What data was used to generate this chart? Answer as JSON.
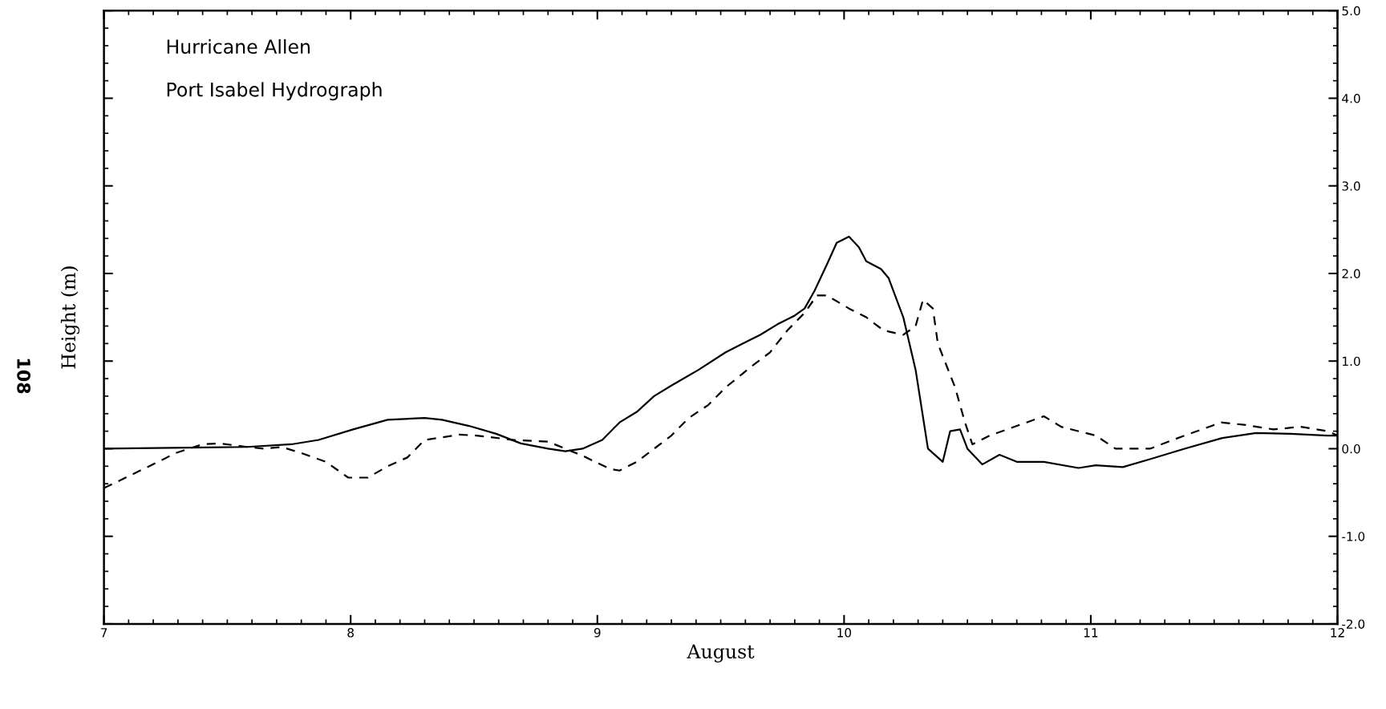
{
  "chart_data": {
    "type": "line",
    "title": "Hurricane Allen",
    "subtitle": "Port Isabel Hydrograph",
    "xlabel": "August",
    "ylabel": "Height (m)",
    "annotations": [
      "108"
    ],
    "xlim": [
      7,
      12
    ],
    "xticks": [
      7,
      8,
      9,
      10,
      11,
      12
    ],
    "ylim": [
      -2,
      5
    ],
    "yticks": [
      {
        "value": -2,
        "label": "-2.0"
      },
      {
        "value": -1,
        "label": "-1.0"
      },
      {
        "value": 0,
        "label": "0.0"
      },
      {
        "value": 1,
        "label": "1.0"
      },
      {
        "value": 2,
        "label": "2.0"
      },
      {
        "value": 3,
        "label": "3.0"
      },
      {
        "value": 4,
        "label": "4.0"
      },
      {
        "value": 5,
        "label": "5.0"
      }
    ],
    "grid": false,
    "legend": false,
    "marker": "none",
    "series": [
      {
        "color": "#000000",
        "line_style": "solid",
        "x": [
          7.0,
          7.58,
          7.76,
          7.87,
          8.01,
          8.15,
          8.3,
          8.37,
          8.48,
          8.59,
          8.69,
          8.8,
          8.87,
          8.94,
          9.02,
          9.09,
          9.16,
          9.23,
          9.3,
          9.41,
          9.52,
          9.59,
          9.66,
          9.73,
          9.8,
          9.84,
          9.88,
          9.93,
          9.97,
          10.02,
          10.06,
          10.09,
          10.15,
          10.18,
          10.24,
          10.29,
          10.34,
          10.4,
          10.43,
          10.47,
          10.5,
          10.56,
          10.63,
          10.7,
          10.81,
          10.95,
          11.02,
          11.13,
          11.24,
          11.38,
          11.53,
          11.67,
          11.81,
          11.96,
          12.0
        ],
        "values": [
          0.0,
          0.02,
          0.05,
          0.1,
          0.22,
          0.33,
          0.35,
          0.33,
          0.26,
          0.17,
          0.06,
          0.0,
          -0.03,
          0.0,
          0.1,
          0.3,
          0.42,
          0.6,
          0.72,
          0.9,
          1.1,
          1.2,
          1.3,
          1.42,
          1.52,
          1.6,
          1.8,
          2.1,
          2.35,
          2.42,
          2.3,
          2.14,
          2.05,
          1.95,
          1.5,
          0.9,
          0.0,
          -0.15,
          0.2,
          0.22,
          0.0,
          -0.18,
          -0.07,
          -0.15,
          -0.15,
          -0.22,
          -0.19,
          -0.21,
          -0.12,
          0.0,
          0.12,
          0.18,
          0.17,
          0.15,
          0.15
        ]
      },
      {
        "color": "#000000",
        "line_style": "dashed",
        "x": [
          7.0,
          7.11,
          7.22,
          7.29,
          7.4,
          7.47,
          7.58,
          7.65,
          7.72,
          7.8,
          7.9,
          7.99,
          8.07,
          8.15,
          8.23,
          8.3,
          8.37,
          8.44,
          8.51,
          8.66,
          8.8,
          8.87,
          8.94,
          9.05,
          9.09,
          9.16,
          9.23,
          9.3,
          9.37,
          9.45,
          9.52,
          9.63,
          9.7,
          9.77,
          9.84,
          9.89,
          9.93,
          10.02,
          10.09,
          10.16,
          10.24,
          10.29,
          10.32,
          10.36,
          10.38,
          10.45,
          10.49,
          10.52,
          10.59,
          10.74,
          10.81,
          10.88,
          11.02,
          11.1,
          11.24,
          11.38,
          11.53,
          11.63,
          11.74,
          11.85,
          11.96,
          12.0
        ],
        "values": [
          -0.45,
          -0.3,
          -0.15,
          -0.05,
          0.05,
          0.06,
          0.02,
          0.0,
          0.02,
          -0.05,
          -0.15,
          -0.33,
          -0.33,
          -0.2,
          -0.1,
          0.1,
          0.13,
          0.16,
          0.15,
          0.1,
          0.08,
          0.0,
          -0.08,
          -0.23,
          -0.25,
          -0.15,
          0.0,
          0.15,
          0.35,
          0.5,
          0.7,
          0.95,
          1.1,
          1.35,
          1.55,
          1.75,
          1.75,
          1.6,
          1.5,
          1.35,
          1.3,
          1.4,
          1.7,
          1.6,
          1.2,
          0.7,
          0.3,
          0.05,
          0.15,
          0.3,
          0.37,
          0.25,
          0.15,
          0.0,
          0.0,
          0.15,
          0.3,
          0.27,
          0.22,
          0.25,
          0.2,
          0.15
        ]
      }
    ]
  }
}
